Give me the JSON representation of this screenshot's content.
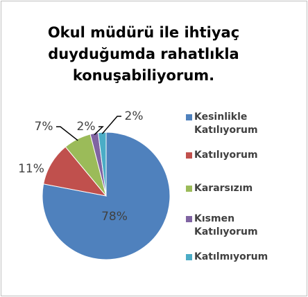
{
  "chart_data": {
    "type": "pie",
    "title": "Okul müdürü ile ihtiyaç duyduğumda rahatlıkla konuşabiliyorum.",
    "categories": [
      "Kesinlikle Katılıyorum",
      "Katılıyorum",
      "Kararsızım",
      "Kısmen Katılıyorum",
      "Katılmıyorum"
    ],
    "values": [
      78,
      11,
      7,
      2,
      2
    ],
    "value_labels": [
      "78%",
      "11%",
      "7%",
      "2%",
      "2%"
    ],
    "colors": [
      "#4f81bd",
      "#c0504d",
      "#9bbb59",
      "#8064a2",
      "#4bacc6"
    ],
    "legend": "right"
  }
}
